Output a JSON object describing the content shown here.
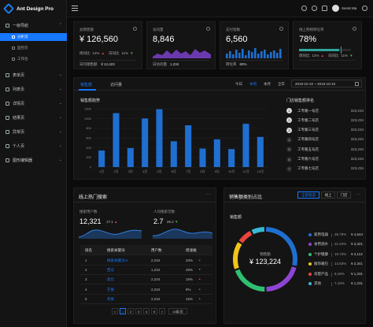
{
  "app": {
    "title": "Ant Design Pro"
  },
  "sidebar": {
    "groups": [
      {
        "label": "一级导航",
        "top": 27,
        "expanded": true
      },
      {
        "label": "表单页",
        "top": 90
      },
      {
        "label": "列表页",
        "top": 108
      },
      {
        "label": "详情页",
        "top": 126
      },
      {
        "label": "结果页",
        "top": 144
      },
      {
        "label": "异常页",
        "top": 162
      },
      {
        "label": "个人页",
        "top": 180
      },
      {
        "label": "图形编辑器",
        "top": 198
      }
    ],
    "subitems": [
      {
        "label": "分析页",
        "active": true
      },
      {
        "label": "监控页"
      },
      {
        "label": "工作台"
      }
    ]
  },
  "header": {
    "user_name": "Serati Ma"
  },
  "kpis": [
    {
      "title": "总销售额",
      "value": "¥ 126,560",
      "row1_a_label": "周同比",
      "row1_a_val": "12%",
      "row1_b_label": "日同比",
      "row1_b_val": "11%",
      "foot_label": "日均销售额",
      "foot_val": "￥12,423"
    },
    {
      "title": "访问量",
      "value": "8,846",
      "foot_label": "日访问量",
      "foot_val": "1,234"
    },
    {
      "title": "支付笔数",
      "value": "6,560",
      "foot_label": "转化率",
      "foot_val": "60%"
    },
    {
      "title": "线上购物转化率",
      "value": "78%",
      "row1_a_label": "周同比",
      "row1_a_val": "12%",
      "row1_b_label": "日同比",
      "row1_b_val": "11%"
    }
  ],
  "sales": {
    "tabs": [
      "销售额",
      "访问量"
    ],
    "periods": [
      "今日",
      "本周",
      "本月",
      "全年"
    ],
    "active_period": "本周",
    "date_range": "2019-10-10 ~ 2019-10-10",
    "chart_title": "销售额趋势",
    "rank_title": "门店销售额排名",
    "ranking": [
      {
        "rank": "1",
        "name": "工专路一号店",
        "value": "323,234"
      },
      {
        "rank": "2",
        "name": "工专路二号店",
        "value": "323,234"
      },
      {
        "rank": "3",
        "name": "工专路三号店",
        "value": "323,234"
      },
      {
        "rank": "4",
        "name": "工专路四号店",
        "value": "323,234"
      },
      {
        "rank": "5",
        "name": "工专路五号店",
        "value": "323,234"
      },
      {
        "rank": "6",
        "name": "工专路六号店",
        "value": "323,234"
      },
      {
        "rank": "7",
        "name": "工专路七号店",
        "value": "323,234"
      }
    ]
  },
  "chart_data": {
    "type": "bar",
    "categories": [
      "1月",
      "2月",
      "3月",
      "4月",
      "5月",
      "6月",
      "7月",
      "8月",
      "9月",
      "10月",
      "11月",
      "12月"
    ],
    "values": [
      340,
      1110,
      390,
      1000,
      1190,
      530,
      860,
      380,
      570,
      370,
      890,
      620
    ],
    "ylim": [
      0,
      1200
    ],
    "yticks": [
      "1200",
      "1000",
      "800",
      "600",
      "400",
      "200",
      "0"
    ],
    "color": "#1f6fd1"
  },
  "search": {
    "title": "线上热门搜索",
    "users_label": "搜索用户数",
    "users_value": "12,321",
    "users_change": "17.1",
    "avg_label": "人均搜索次数",
    "avg_value": "2.7",
    "avg_change": "26.2",
    "columns": [
      "排名",
      "搜索关键词",
      "用户数",
      "周涨幅"
    ],
    "rows": [
      {
        "rank": "1",
        "keyword": "搜索关键词-0",
        "users": "2,234",
        "change": "33%",
        "up": true
      },
      {
        "rank": "2",
        "keyword": "西瓜",
        "users": "1,234",
        "change": "28%",
        "up": false
      },
      {
        "rank": "3",
        "keyword": "奥比",
        "users": "2,234",
        "change": "15%",
        "up": true
      },
      {
        "rank": "4",
        "keyword": "芒果",
        "users": "2,234",
        "change": "9%",
        "up": true
      },
      {
        "rank": "5",
        "keyword": "苹果",
        "users": "2,234",
        "change": "15%",
        "up": true
      }
    ],
    "pager": [
      "<",
      "1",
      "2",
      "3",
      "4",
      "5",
      ">"
    ],
    "page_size": "10条/页"
  },
  "category": {
    "title": "销售额类别占比",
    "tabs": [
      "全部渠道",
      "线上",
      "门店"
    ],
    "sub_title": "销售额",
    "center_label": "销售额",
    "center_value": "¥ 123,224",
    "items": [
      {
        "name": "家用电器",
        "pct": "28.79%",
        "amount": "¥ 4,544",
        "color": "#1f6fd1",
        "share": 0.2879
      },
      {
        "name": "食用酒水",
        "pct": "21.04%",
        "amount": "¥ 3,321",
        "color": "#8e44d4",
        "share": 0.2104
      },
      {
        "name": "个护健康",
        "pct": "19.73%",
        "amount": "¥ 3,113",
        "color": "#2fbf71",
        "share": 0.1973
      },
      {
        "name": "服饰箱包",
        "pct": "14.83%",
        "amount": "¥ 2,341",
        "color": "#f0c419",
        "share": 0.1483
      },
      {
        "name": "母婴产品",
        "pct": "8.18%",
        "amount": "¥ 1,231",
        "color": "#e8453c",
        "share": 0.0818
      },
      {
        "name": "其他",
        "pct": "7.43%",
        "amount": "¥ 1,231",
        "color": "#3ab8d6",
        "share": 0.0743
      }
    ]
  }
}
